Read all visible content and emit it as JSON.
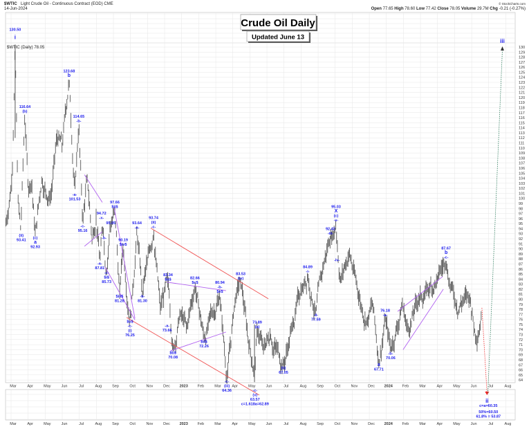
{
  "header": {
    "symbol": "$WTIC",
    "description": "Light Crude Oil - Continuous Contract (EOD) CME",
    "date": "14-Jun-2024",
    "credit": "© StockCharts.com",
    "quote": {
      "open_label": "Open",
      "open": "77.65",
      "high_label": "High",
      "high": "78.60",
      "low_label": "Low",
      "low": "77.42",
      "close_label": "Close",
      "close": "78.05",
      "volume_label": "Volume",
      "volume": "29.7M",
      "chg_label": "Chg",
      "chg": "-0.21 (-0.27%)"
    },
    "legend": "$WTIC (Daily) 78.05"
  },
  "title_box": {
    "title": "Crude Oil Daily",
    "subtitle": "Updated June 13"
  },
  "colors": {
    "bars": "#555555",
    "labels": "#1a1aee",
    "channel": "#f05050",
    "wedge": "#b060f0",
    "forecast_down": "#ee2222",
    "forecast_up": "#2a7a5a"
  },
  "chart_data": {
    "type": "line",
    "title": "Crude Oil Daily",
    "xlabel": "",
    "ylabel": "",
    "x_unit": "months since 2022-03-01",
    "ylim": [
      64,
      130
    ],
    "y_ticks": [
      64,
      65,
      66,
      67,
      68,
      69,
      70,
      71,
      72,
      73,
      74,
      75,
      76,
      77,
      78,
      79,
      80,
      81,
      82,
      83,
      84,
      85,
      86,
      87,
      88,
      89,
      90,
      91,
      92,
      93,
      94,
      95,
      96,
      97,
      98,
      99,
      100,
      101,
      102,
      103,
      104,
      105,
      106,
      107,
      108,
      109,
      110,
      111,
      112,
      113,
      114,
      115,
      116,
      117,
      118,
      119,
      120,
      121,
      122,
      123,
      124,
      125,
      126,
      127,
      128,
      129,
      130
    ],
    "x_ticks": [
      "Mar",
      "Apr",
      "May",
      "Jun",
      "Jul",
      "Aug",
      "Sep",
      "Oct",
      "Nov",
      "Dec",
      "2023",
      "Feb",
      "Mar",
      "Apr",
      "May",
      "Jun",
      "Jul",
      "Aug",
      "Sep",
      "Oct",
      "Nov",
      "Dec",
      "2024",
      "Feb",
      "Mar",
      "Apr",
      "May",
      "Jun",
      "Jul",
      "Aug"
    ],
    "price_path": [
      [
        -0.3,
        95
      ],
      [
        0.05,
        104
      ],
      [
        0.24,
        130.5
      ],
      [
        0.4,
        100
      ],
      [
        0.57,
        93.4
      ],
      [
        0.81,
        116.6
      ],
      [
        1.0,
        102
      ],
      [
        1.2,
        104
      ],
      [
        1.42,
        92.9
      ],
      [
        1.8,
        104
      ],
      [
        2.3,
        100
      ],
      [
        2.7,
        112
      ],
      [
        3.0,
        110
      ],
      [
        3.4,
        123.7
      ],
      [
        3.73,
        101.5
      ],
      [
        3.97,
        114.7
      ],
      [
        4.2,
        95.2
      ],
      [
        4.45,
        104
      ],
      [
        4.75,
        92
      ],
      [
        5.0,
        97
      ],
      [
        5.2,
        87.8
      ],
      [
        5.4,
        94.7
      ],
      [
        5.55,
        85.7
      ],
      [
        5.8,
        95
      ],
      [
        6.08,
        97.7
      ],
      [
        6.36,
        81.3
      ],
      [
        6.57,
        90.2
      ],
      [
        6.97,
        76.3
      ],
      [
        7.38,
        93.6
      ],
      [
        7.7,
        81.3
      ],
      [
        8.0,
        87
      ],
      [
        8.35,
        93.7
      ],
      [
        8.75,
        78
      ],
      [
        9.2,
        83.3
      ],
      [
        9.49,
        70.1
      ],
      [
        9.9,
        77
      ],
      [
        10.3,
        74
      ],
      [
        10.78,
        82.7
      ],
      [
        11.31,
        72.3
      ],
      [
        11.8,
        77
      ],
      [
        12.24,
        80.9
      ],
      [
        12.65,
        64.4
      ],
      [
        13.13,
        80
      ],
      [
        13.46,
        83.5
      ],
      [
        13.9,
        72
      ],
      [
        14.27,
        66
      ],
      [
        14.43,
        73.9
      ],
      [
        14.8,
        70
      ],
      [
        15.2,
        73
      ],
      [
        15.97,
        67.1
      ],
      [
        16.5,
        75
      ],
      [
        17.0,
        82
      ],
      [
        17.39,
        84.9
      ],
      [
        17.87,
        77.6
      ],
      [
        18.4,
        88
      ],
      [
        18.72,
        92.4
      ],
      [
        19.05,
        95.0
      ],
      [
        19.3,
        84
      ],
      [
        19.82,
        89.5
      ],
      [
        20.43,
        80
      ],
      [
        20.84,
        76
      ],
      [
        21.2,
        79
      ],
      [
        21.56,
        67.7
      ],
      [
        21.93,
        76.2
      ],
      [
        22.25,
        70
      ],
      [
        22.94,
        79
      ],
      [
        23.27,
        74
      ],
      [
        23.9,
        80
      ],
      [
        24.49,
        82
      ],
      [
        25.0,
        84
      ],
      [
        25.5,
        87.7
      ],
      [
        25.8,
        83
      ],
      [
        26.1,
        79
      ],
      [
        26.5,
        80
      ],
      [
        26.92,
        80
      ],
      [
        27.24,
        72.5
      ],
      [
        27.6,
        78.1
      ]
    ],
    "wave_labels": [
      {
        "t": 0.24,
        "p": 130.5,
        "pos": "above",
        "lines": [
          "130.50"
        ],
        "big": "i"
      },
      {
        "t": 0.6,
        "p": 93.4,
        "pos": "below",
        "lines": [
          "(ii)",
          "93.41"
        ]
      },
      {
        "t": 0.81,
        "p": 116.6,
        "pos": "above",
        "lines": [
          "116.64",
          "(b)"
        ]
      },
      {
        "t": 1.42,
        "p": 92.9,
        "pos": "below",
        "lines": [
          "(c)",
          "a",
          "92.93"
        ]
      },
      {
        "t": 3.4,
        "p": 123.7,
        "pos": "above",
        "lines": [
          "123.68",
          "b"
        ]
      },
      {
        "t": 3.97,
        "p": 114.7,
        "pos": "above",
        "lines": [
          "114.65",
          "-b-"
        ]
      },
      {
        "t": 3.73,
        "p": 101.5,
        "pos": "below",
        "lines": [
          "-a-",
          "101.53"
        ]
      },
      {
        "t": 4.2,
        "p": 95.2,
        "pos": "below",
        "lines": [
          "-c-",
          "95.16"
        ]
      },
      {
        "t": 5.3,
        "p": 95.5,
        "pos": "above",
        "lines": [
          "94.72",
          "-x-"
        ]
      },
      {
        "t": 5.85,
        "p": 94.5,
        "pos": "above",
        "lines": [
          "95.05"
        ]
      },
      {
        "t": 5.45,
        "p": 91.5,
        "pos": "above",
        "lines": [
          "-b-"
        ]
      },
      {
        "t": 5.2,
        "p": 87.8,
        "pos": "below",
        "lines": [
          "-a-",
          "87.81"
        ]
      },
      {
        "t": 5.6,
        "p": 87.5,
        "pos": "below",
        "lines": [
          "-c-",
          "$i$",
          "85.73"
        ]
      },
      {
        "t": 6.08,
        "p": 97.7,
        "pos": "above",
        "lines": [
          "97.66",
          "$ii$"
        ]
      },
      {
        "t": 6.57,
        "p": 90.2,
        "pos": "above",
        "lines": [
          "90.19",
          "$iv$"
        ]
      },
      {
        "t": 6.36,
        "p": 81.3,
        "pos": "below",
        "lines": [
          "$iii$",
          "81.28"
        ]
      },
      {
        "t": 6.97,
        "p": 76.3,
        "pos": "below",
        "lines": [
          "$v$",
          "-c-",
          "(i)",
          "76.25"
        ]
      },
      {
        "t": 7.38,
        "p": 93.6,
        "pos": "above",
        "lines": [
          "93.64",
          "-a-"
        ]
      },
      {
        "t": 7.7,
        "p": 81.3,
        "pos": "below",
        "lines": [
          "-b-",
          "81.30"
        ]
      },
      {
        "t": 8.35,
        "p": 93.7,
        "pos": "above",
        "lines": [
          "93.74",
          "(ii)",
          "-c-"
        ]
      },
      {
        "t": 9.2,
        "p": 83.3,
        "pos": "above",
        "lines": [
          "83.34",
          "$a$"
        ]
      },
      {
        "t": 9.15,
        "p": 75.5,
        "pos": "below",
        "lines": [
          "-a-",
          "73.66"
        ]
      },
      {
        "t": 9.49,
        "p": 70.1,
        "pos": "below",
        "lines": [
          "$b$",
          "70.08"
        ]
      },
      {
        "t": 10.78,
        "p": 82.7,
        "pos": "above",
        "lines": [
          "82.66",
          "$c$"
        ]
      },
      {
        "t": 11.31,
        "p": 72.3,
        "pos": "below",
        "lines": [
          "$d$",
          "72.26"
        ]
      },
      {
        "t": 12.24,
        "p": 80.9,
        "pos": "above",
        "lines": [
          "80.94",
          "-b-",
          "$e$"
        ]
      },
      {
        "t": 12.65,
        "p": 64.4,
        "pos": "below",
        "lines": [
          "-c-",
          "(iii)",
          "64.36"
        ]
      },
      {
        "t": 13.46,
        "p": 83.5,
        "pos": "above",
        "lines": [
          "83.53",
          "(iv)"
        ]
      },
      {
        "t": 14.43,
        "p": 73.9,
        "pos": "above",
        "lines": [
          "73.89",
          "(a)"
        ]
      },
      {
        "t": 14.3,
        "p": 63.6,
        "pos": "below",
        "lines": [
          "-c-",
          "(v)",
          "63.57",
          "c=1.618a=62.89"
        ]
      },
      {
        "t": 15.97,
        "p": 67.1,
        "pos": "below",
        "lines": [
          "(b)",
          "67.05"
        ]
      },
      {
        "t": 17.39,
        "p": 84.9,
        "pos": "above",
        "lines": [
          "84.89",
          "-i-"
        ]
      },
      {
        "t": 17.87,
        "p": 77.6,
        "pos": "below",
        "lines": [
          "-ii-",
          "77.59"
        ]
      },
      {
        "t": 18.72,
        "p": 92.4,
        "pos": "above",
        "lines": [
          "92.42",
          "-iii-"
        ]
      },
      {
        "t": 19.1,
        "p": 88.5,
        "pos": "below",
        "lines": [
          "-iv-"
        ]
      },
      {
        "t": 19.05,
        "p": 95.0,
        "pos": "above",
        "lines": [
          "95.03",
          "X",
          "(c)",
          "-v-"
        ]
      },
      {
        "t": 21.56,
        "p": 67.7,
        "pos": "below",
        "lines": [
          "a",
          "67.71"
        ]
      },
      {
        "t": 21.93,
        "p": 76.2,
        "pos": "above",
        "lines": [
          "76.18",
          "-a-"
        ]
      },
      {
        "t": 22.25,
        "p": 70.0,
        "pos": "below",
        "lines": [
          "-b-",
          "70.06"
        ]
      },
      {
        "t": 25.5,
        "p": 87.7,
        "pos": "above",
        "lines": [
          "87.67",
          "b",
          "-c-"
        ]
      }
    ],
    "target_labels": {
      "iii": "iii",
      "ii": "ii",
      "ii_notes": [
        "c=a=60.35",
        "50%=60.50",
        "61.8% = 53.87"
      ]
    },
    "trendlines": [
      {
        "kind": "wedge",
        "from": [
          4.3,
          104.7
        ],
        "to": [
          5.35,
          99.2
        ]
      },
      {
        "kind": "wedge",
        "from": [
          4.3,
          90.5
        ],
        "to": [
          5.35,
          93.4
        ]
      },
      {
        "kind": "wedge",
        "from": [
          6.04,
          98.2
        ],
        "to": [
          7.26,
          76.2
        ]
      },
      {
        "kind": "wedge",
        "from": [
          5.51,
          86.4
        ],
        "to": [
          7.26,
          75.9
        ]
      },
      {
        "kind": "wedge",
        "from": [
          9.12,
          83.4
        ],
        "to": [
          12.6,
          81.7
        ]
      },
      {
        "kind": "wedge",
        "from": [
          9.36,
          69.8
        ],
        "to": [
          12.6,
          73.5
        ]
      },
      {
        "kind": "channel",
        "from": [
          8.19,
          94.1
        ],
        "to": [
          15.08,
          80.1
        ]
      },
      {
        "kind": "channel",
        "from": [
          6.77,
          76.4
        ],
        "to": [
          14.55,
          61.0
        ]
      },
      {
        "kind": "wedge",
        "from": [
          22.66,
          77.6
        ],
        "to": [
          25.3,
          84.5
        ]
      },
      {
        "kind": "wedge",
        "from": [
          22.98,
          70.0
        ],
        "to": [
          25.34,
          82.0
        ]
      }
    ],
    "forecast": {
      "down": {
        "from": [
          27.6,
          78.3
        ],
        "to": [
          27.9,
          62.0
        ]
      },
      "up": {
        "from": [
          27.95,
          62.0
        ],
        "to": [
          28.8,
          130.0
        ]
      }
    }
  }
}
